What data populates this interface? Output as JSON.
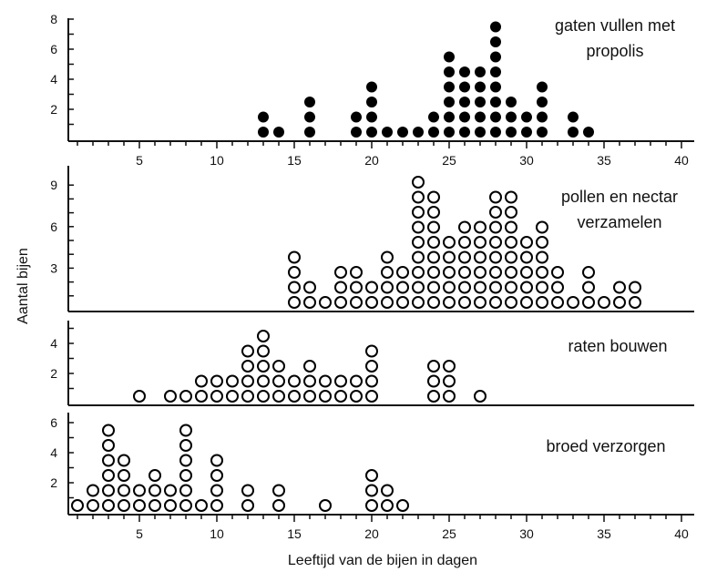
{
  "chart_data": {
    "type": "scatter",
    "style": "dot-plot",
    "xlabel": "Leeftijd van de bijen in dagen",
    "ylabel": "Aantal bijen",
    "xlim": [
      0,
      40
    ],
    "x_ticks": [
      "5",
      "10",
      "15",
      "20",
      "25",
      "30",
      "35",
      "40"
    ],
    "panels": [
      {
        "title_lines": [
          "gaten vullen met",
          "propolis"
        ],
        "marker": "filled",
        "ylim": [
          0,
          8
        ],
        "y_ticks": [
          "2",
          "4",
          "6",
          "8"
        ],
        "x": [
          13,
          14,
          16,
          19,
          20,
          21,
          22,
          23,
          24,
          25,
          26,
          27,
          28,
          29,
          30,
          31,
          33,
          34
        ],
        "counts": [
          2,
          1,
          3,
          2,
          4,
          1,
          1,
          1,
          2,
          6,
          5,
          5,
          8,
          3,
          2,
          4,
          2,
          1
        ]
      },
      {
        "title_lines": [
          "pollen en nectar",
          "verzamelen"
        ],
        "marker": "open",
        "ylim": [
          0,
          9
        ],
        "y_ticks": [
          "3",
          "6",
          "9"
        ],
        "x": [
          15,
          16,
          17,
          18,
          19,
          20,
          21,
          22,
          23,
          24,
          25,
          26,
          27,
          28,
          29,
          30,
          31,
          32,
          33,
          34,
          35,
          36,
          37
        ],
        "counts": [
          4,
          2,
          1,
          3,
          3,
          2,
          4,
          3,
          9,
          8,
          5,
          6,
          6,
          8,
          8,
          5,
          6,
          3,
          1,
          3,
          1,
          2,
          2
        ]
      },
      {
        "title_lines": [
          "raten bouwen"
        ],
        "marker": "open",
        "ylim": [
          0,
          5
        ],
        "y_ticks": [
          "2",
          "4"
        ],
        "x": [
          5,
          7,
          8,
          9,
          10,
          11,
          12,
          13,
          14,
          15,
          16,
          17,
          18,
          19,
          20,
          24,
          25,
          27
        ],
        "counts": [
          1,
          1,
          1,
          2,
          2,
          2,
          4,
          5,
          3,
          2,
          3,
          2,
          2,
          2,
          4,
          3,
          3,
          1
        ]
      },
      {
        "title_lines": [
          "broed verzorgen"
        ],
        "marker": "open",
        "ylim": [
          0,
          6
        ],
        "y_ticks": [
          "2",
          "4",
          "6"
        ],
        "x": [
          1,
          2,
          3,
          4,
          5,
          6,
          7,
          8,
          9,
          10,
          12,
          14,
          17,
          20,
          21,
          22
        ],
        "counts": [
          1,
          2,
          6,
          4,
          2,
          3,
          2,
          6,
          1,
          4,
          2,
          2,
          1,
          3,
          2,
          1
        ]
      }
    ]
  }
}
